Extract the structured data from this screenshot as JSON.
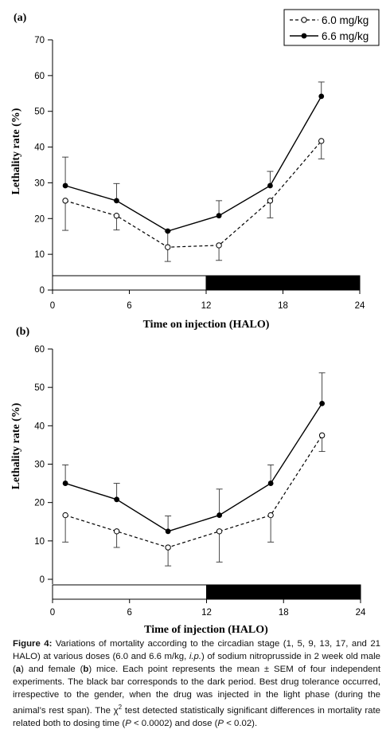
{
  "legend": {
    "entries": [
      {
        "label": "6.0 mg/kg",
        "marker": "open-circle",
        "line": "dashed"
      },
      {
        "label": "6.6 mg/kg",
        "marker": "filled-circle",
        "line": "solid"
      }
    ]
  },
  "chart_data": [
    {
      "type": "line",
      "panel_label": "(a)",
      "xlabel": "Time on injection (HALO)",
      "ylabel": "Lethality rate (%)",
      "xlim": [
        0,
        24
      ],
      "ylim": [
        0,
        70
      ],
      "xticks": [
        0,
        6,
        12,
        18,
        24
      ],
      "yticks": [
        0,
        10,
        20,
        30,
        40,
        50,
        60,
        70
      ],
      "light_dark_bar": {
        "light": [
          0,
          12
        ],
        "dark": [
          12,
          24
        ]
      },
      "legend_position": "top-right",
      "grid": false,
      "series": [
        {
          "name": "6.0 mg/kg",
          "x": [
            1,
            5,
            9,
            13,
            17,
            21
          ],
          "y": [
            25,
            20.8,
            12,
            12.5,
            25,
            41.7
          ],
          "err_hi": [
            0,
            0,
            4.5,
            0,
            0,
            0
          ],
          "err_lo": [
            8.3,
            4,
            4,
            4.2,
            4.8,
            5
          ]
        },
        {
          "name": "6.6 mg/kg",
          "x": [
            1,
            5,
            9,
            13,
            17,
            21
          ],
          "y": [
            29.2,
            25,
            16.5,
            20.8,
            29.2,
            54.2
          ],
          "err_hi": [
            8,
            4.8,
            0,
            4.2,
            4,
            4
          ],
          "err_lo": [
            0,
            0,
            0,
            0,
            0,
            0
          ]
        }
      ]
    },
    {
      "type": "line",
      "panel_label": "(b)",
      "xlabel": "Time of injection (HALO)",
      "ylabel": "Lethality rate (%)",
      "xlim": [
        0,
        24
      ],
      "ylim": [
        0,
        60
      ],
      "xticks": [
        0,
        6,
        12,
        18,
        24
      ],
      "yticks": [
        0,
        10,
        20,
        30,
        40,
        50,
        60
      ],
      "light_dark_bar": {
        "light": [
          0,
          12
        ],
        "dark": [
          12,
          24
        ]
      },
      "grid": false,
      "series": [
        {
          "name": "6.0 mg/kg",
          "x": [
            1,
            5,
            9,
            13,
            17,
            21
          ],
          "y": [
            16.7,
            12.5,
            8.3,
            12.5,
            16.7,
            37.5
          ],
          "err_hi": [
            0,
            0,
            0,
            0,
            0,
            0
          ],
          "err_lo": [
            7,
            4.2,
            4.8,
            8,
            7,
            4.2
          ]
        },
        {
          "name": "6.6 mg/kg",
          "x": [
            1,
            5,
            9,
            13,
            17,
            21
          ],
          "y": [
            25,
            20.8,
            12.5,
            16.7,
            25,
            45.8
          ],
          "err_hi": [
            4.8,
            4.2,
            4,
            6.8,
            4.8,
            8
          ],
          "err_lo": [
            0,
            0,
            0,
            0,
            0,
            0
          ]
        }
      ]
    }
  ],
  "caption": {
    "figure_label": "Figure 4:",
    "t1": " Variations of mortality according to the circadian stage (1, 5, 9, 13, 17, and 21 HALO) at various doses (6.0 and 6.6 m/kg, ",
    "ip": "i.p.",
    "t2": ") of sodium nitroprusside in 2 week old male (",
    "a": "a",
    "t3": ") and female (",
    "b": "b",
    "t4": ") mice. Each point represents the mean ± SEM of four independent experiments. The black bar corresponds to the dark period. Best drug tolerance occurred, irrespective to the gender, when the drug was injected in the light phase (during the animal’s rest span). The χ",
    "sup": "2",
    "t5": " test detected statistically significant differences in mortality rate related both to dosing time (",
    "p1": "P",
    "t6": " < 0.0002) and dose (",
    "p2": "P",
    "t7": " < 0.02)."
  }
}
